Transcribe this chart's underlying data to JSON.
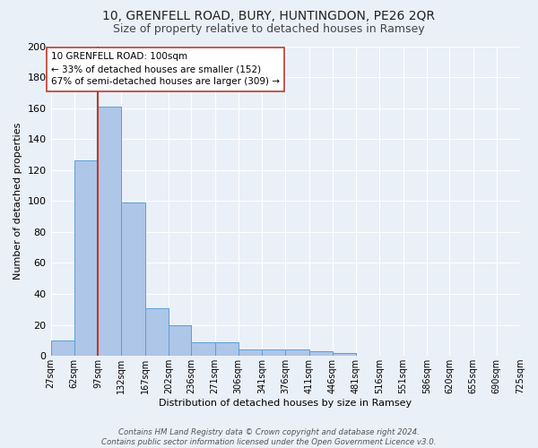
{
  "title": "10, GRENFELL ROAD, BURY, HUNTINGDON, PE26 2QR",
  "subtitle": "Size of property relative to detached houses in Ramsey",
  "xlabel": "Distribution of detached houses by size in Ramsey",
  "ylabel": "Number of detached properties",
  "bar_values": [
    10,
    126,
    161,
    99,
    31,
    20,
    9,
    9,
    4,
    4,
    4,
    3,
    2,
    0,
    0,
    0,
    0,
    0,
    0,
    0
  ],
  "bin_edges": [
    27,
    62,
    97,
    132,
    167,
    202,
    236,
    271,
    306,
    341,
    376,
    411,
    446,
    481,
    516,
    551,
    586,
    620,
    655,
    690,
    725
  ],
  "tick_labels": [
    "27sqm",
    "62sqm",
    "97sqm",
    "132sqm",
    "167sqm",
    "202sqm",
    "236sqm",
    "271sqm",
    "306sqm",
    "341sqm",
    "376sqm",
    "411sqm",
    "446sqm",
    "481sqm",
    "516sqm",
    "551sqm",
    "586sqm",
    "620sqm",
    "655sqm",
    "690sqm",
    "725sqm"
  ],
  "bar_color": "#aec6e8",
  "bar_edge_color": "#5a9fd4",
  "bg_color": "#eaf0f8",
  "grid_color": "#ffffff",
  "vline_color": "#c0392b",
  "annotation_text": "10 GRENFELL ROAD: 100sqm\n← 33% of detached houses are smaller (152)\n67% of semi-detached houses are larger (309) →",
  "annotation_box_color": "#ffffff",
  "annotation_box_edge": "#c0392b",
  "ylim": [
    0,
    200
  ],
  "yticks": [
    0,
    20,
    40,
    60,
    80,
    100,
    120,
    140,
    160,
    180,
    200
  ],
  "footer": "Contains HM Land Registry data © Crown copyright and database right 2024.\nContains public sector information licensed under the Open Government Licence v3.0.",
  "title_fontsize": 10,
  "subtitle_fontsize": 9,
  "ylabel_fontsize": 8,
  "xlabel_fontsize": 8,
  "ytick_fontsize": 8,
  "xtick_fontsize": 7
}
